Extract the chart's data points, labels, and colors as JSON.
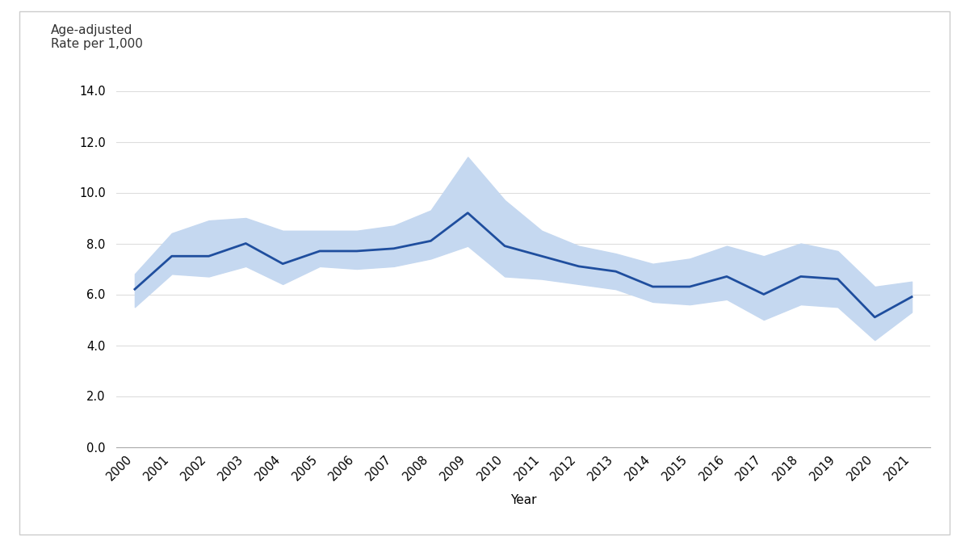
{
  "years": [
    2000,
    2001,
    2002,
    2003,
    2004,
    2005,
    2006,
    2007,
    2008,
    2009,
    2010,
    2011,
    2012,
    2013,
    2014,
    2015,
    2016,
    2017,
    2018,
    2019,
    2020,
    2021
  ],
  "values": [
    6.2,
    7.5,
    7.5,
    8.0,
    7.2,
    7.7,
    7.7,
    7.8,
    8.1,
    9.2,
    7.9,
    7.5,
    7.1,
    6.9,
    6.3,
    6.3,
    6.7,
    6.0,
    6.7,
    6.6,
    5.1,
    5.9
  ],
  "ci_upper": [
    6.8,
    8.4,
    8.9,
    9.0,
    8.5,
    8.5,
    8.5,
    8.7,
    9.3,
    11.4,
    9.7,
    8.5,
    7.9,
    7.6,
    7.2,
    7.4,
    7.9,
    7.5,
    8.0,
    7.7,
    6.3,
    6.5
  ],
  "ci_lower": [
    5.5,
    6.8,
    6.7,
    7.1,
    6.4,
    7.1,
    7.0,
    7.1,
    7.4,
    7.9,
    6.7,
    6.6,
    6.4,
    6.2,
    5.7,
    5.6,
    5.8,
    5.0,
    5.6,
    5.5,
    4.2,
    5.3
  ],
  "line_color": "#1f4e9e",
  "ci_color": "#c5d8f0",
  "background_color": "#ffffff",
  "panel_background": "#f9f9f9",
  "border_color": "#cccccc",
  "ylabel_line1": "Age-adjusted",
  "ylabel_line2": "Rate per 1,000",
  "xlabel": "Year",
  "ylim": [
    0,
    15
  ],
  "yticks": [
    0.0,
    2.0,
    4.0,
    6.0,
    8.0,
    10.0,
    12.0,
    14.0
  ],
  "label_fontsize": 11,
  "tick_fontsize": 10.5,
  "line_width": 2.0
}
